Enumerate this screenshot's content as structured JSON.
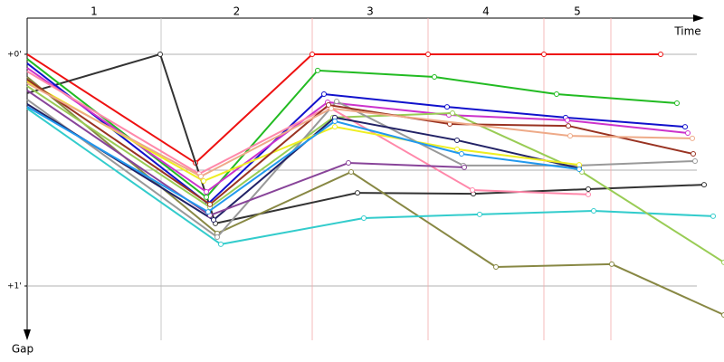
{
  "chart_data": {
    "type": "line",
    "x_label": "Time",
    "y_label": "Gap",
    "laps": [
      {
        "label": "1",
        "end": 148
      },
      {
        "label": "2",
        "end": 315
      },
      {
        "label": "3",
        "end": 443
      },
      {
        "label": "4",
        "end": 571
      },
      {
        "label": "5",
        "end": 645
      }
    ],
    "xlim": [
      0,
      770
    ],
    "ylim": [
      -0.16,
      1.25
    ],
    "yticks": [
      {
        "value": 0,
        "label": "+0'"
      },
      {
        "value": 1,
        "label": "+1'"
      }
    ],
    "grid_y": [
      0,
      0.5,
      1
    ],
    "series": [
      {
        "color": "#ee1111",
        "x": [
          0,
          186,
          315,
          443,
          571,
          700
        ],
        "values": [
          0,
          0.469,
          0,
          0,
          0,
          0
        ]
      },
      {
        "color": "#333333",
        "x": [
          0,
          147,
          208,
          365,
          493,
          620,
          748
        ],
        "values": [
          0.168,
          0,
          0.73,
          0.598,
          0.602,
          0.582,
          0.563
        ]
      },
      {
        "color": "#22bb22",
        "x": [
          0,
          198,
          321,
          450,
          585,
          718
        ],
        "values": [
          0.02,
          0.617,
          0.07,
          0.098,
          0.172,
          0.211
        ]
      },
      {
        "color": "#1111cc",
        "x": [
          0,
          200,
          328,
          464,
          595,
          727
        ],
        "values": [
          0.039,
          0.645,
          0.172,
          0.227,
          0.273,
          0.313
        ]
      },
      {
        "color": "#cc33cc",
        "x": [
          0,
          198,
          332,
          466,
          597,
          730
        ],
        "values": [
          0.059,
          0.594,
          0.207,
          0.262,
          0.285,
          0.34
        ]
      },
      {
        "color": "#888844",
        "x": [
          0,
          210,
          358,
          518,
          646,
          770
        ],
        "values": [
          0.098,
          0.773,
          0.508,
          0.918,
          0.906,
          1.125
        ]
      },
      {
        "color": "#33cccc",
        "x": [
          0,
          214,
          372,
          500,
          626,
          758
        ],
        "values": [
          0.234,
          0.82,
          0.707,
          0.691,
          0.676,
          0.699
        ]
      },
      {
        "color": "#99cc55",
        "x": [
          0,
          202,
          338,
          470,
          613,
          770
        ],
        "values": [
          0.137,
          0.66,
          0.273,
          0.254,
          0.508,
          0.898
        ]
      },
      {
        "color": "#999999",
        "x": [
          0,
          210,
          342,
          482,
          610,
          738
        ],
        "values": [
          0.195,
          0.789,
          0.203,
          0.48,
          0.48,
          0.461
        ]
      },
      {
        "color": "#ff88aa",
        "x": [
          0,
          190,
          333,
          492,
          620
        ],
        "values": [
          0.074,
          0.516,
          0.227,
          0.586,
          0.605
        ]
      },
      {
        "color": "#222266",
        "x": [
          0,
          206,
          340,
          475,
          610
        ],
        "values": [
          0.215,
          0.715,
          0.273,
          0.371,
          0.492
        ]
      },
      {
        "color": "#eeee22",
        "x": [
          0,
          195,
          340,
          475,
          610
        ],
        "values": [
          0.117,
          0.547,
          0.313,
          0.41,
          0.477
        ]
      },
      {
        "color": "#993322",
        "x": [
          0,
          202,
          333,
          467,
          598,
          736
        ],
        "values": [
          0.109,
          0.648,
          0.219,
          0.301,
          0.309,
          0.43
        ]
      },
      {
        "color": "#884499",
        "x": [
          0,
          202,
          355,
          483
        ],
        "values": [
          0.156,
          0.695,
          0.469,
          0.488
        ]
      },
      {
        "color": "#2299ee",
        "x": [
          0,
          200,
          340,
          480,
          610
        ],
        "values": [
          0.226,
          0.68,
          0.289,
          0.43,
          0.496
        ]
      },
      {
        "color": "#eeaa88",
        "x": [
          0,
          192,
          336,
          600,
          735
        ],
        "values": [
          0.125,
          0.527,
          0.234,
          0.352,
          0.363
        ]
      }
    ]
  }
}
